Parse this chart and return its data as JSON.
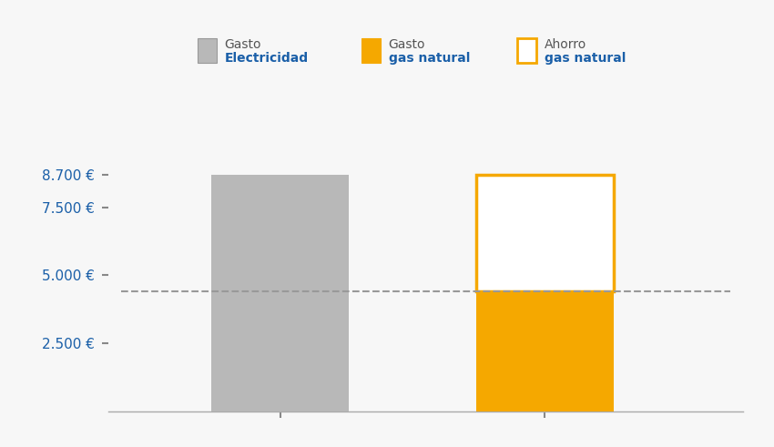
{
  "background_color": "#f7f7f7",
  "bar1_x": 1,
  "bar1_height": 8700,
  "bar1_color": "#b8b8b8",
  "bar2_x": 2,
  "bar2_total": 8700,
  "bar2_gasto": 4400,
  "bar2_color_gasto": "#F5A800",
  "bar2_color_ahorro_fill": "#ffffff",
  "bar2_color_ahorro_edge": "#F5A800",
  "dashed_line_y": 4400,
  "dashed_line_color": "#999999",
  "yticks": [
    2500,
    5000,
    7500,
    8700
  ],
  "ytick_labels": [
    "2.500 €",
    "5.000 €",
    "7.500 €",
    "8.700 €"
  ],
  "ylim": [
    0,
    10200
  ],
  "xlim": [
    0.35,
    2.75
  ],
  "text_color_blue": "#1a5fa8",
  "text_color_dark": "#555555",
  "bar_width": 0.52,
  "legend_gasto_elec_color": "#b8b8b8",
  "legend_gasto_elec_line1": "Gasto",
  "legend_gasto_elec_line2": "Electricidad",
  "legend_gasto_gas_color": "#F5A800",
  "legend_gasto_gas_line1": "Gasto",
  "legend_gasto_gas_line2": "gas natural",
  "legend_ahorro_color": "#F5A800",
  "legend_ahorro_line1": "Ahorro",
  "legend_ahorro_line2": "gas natural"
}
